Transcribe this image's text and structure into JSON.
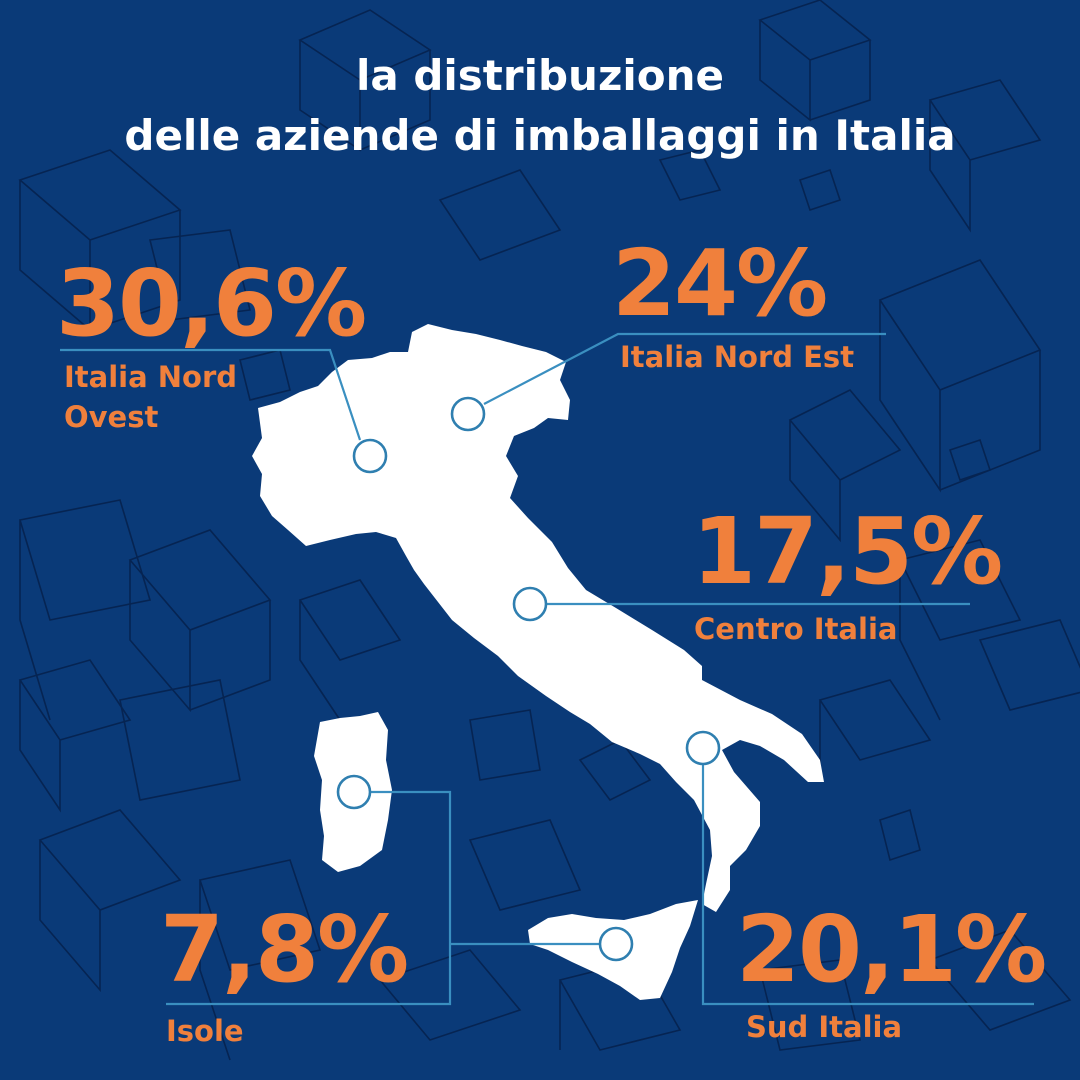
{
  "title": {
    "line1": "la distribuzione",
    "line2": "delle aziende di imballaggi in Italia"
  },
  "colors": {
    "background": "#0a3a78",
    "accent": "#f0803c",
    "map_fill": "#ffffff",
    "leader_line": "#3a8fc0",
    "pattern_stroke": "#062452"
  },
  "regions": [
    {
      "name": "Italia Nord Ovest",
      "label_line1": "Italia Nord",
      "label_line2": "Ovest",
      "value": "30,6%",
      "percent": 30.6
    },
    {
      "name": "Italia Nord Est",
      "label_line1": "Italia Nord Est",
      "value": "24%",
      "percent": 24
    },
    {
      "name": "Centro Italia",
      "label_line1": "Centro Italia",
      "value": "17,5%",
      "percent": 17.5
    },
    {
      "name": "Sud Italia",
      "label_line1": "Sud Italia",
      "value": "20,1%",
      "percent": 20.1
    },
    {
      "name": "Isole",
      "label_line1": "Isole",
      "value": "7,8%",
      "percent": 7.8
    }
  ]
}
